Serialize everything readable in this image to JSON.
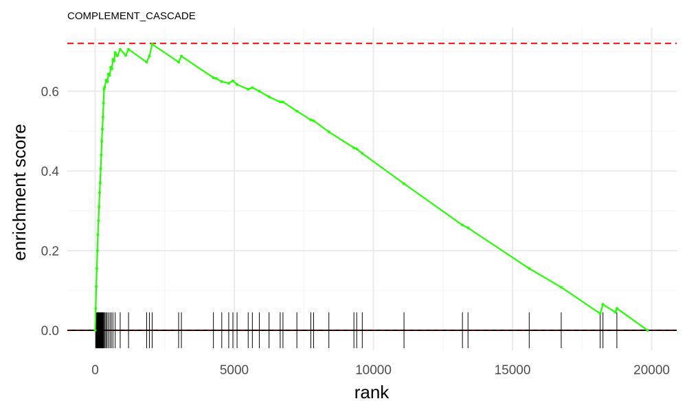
{
  "chart_data": {
    "type": "line",
    "title": "COMPLEMENT_CASCADE",
    "xlabel": "rank",
    "ylabel": "enrichment score",
    "xlim": [
      -1000,
      20900
    ],
    "ylim": [
      -0.05,
      0.76
    ],
    "x_ticks": [
      0,
      5000,
      10000,
      15000,
      20000
    ],
    "x_tick_labels": [
      "0",
      "5000",
      "10000",
      "15000",
      "20000"
    ],
    "y_ticks": [
      0.0,
      0.2,
      0.4,
      0.6
    ],
    "y_tick_labels": [
      "0.0",
      "0.2",
      "0.4",
      "0.6"
    ],
    "grid": true,
    "legend": "none",
    "max_es": 0.72,
    "colors": {
      "curve": "#22ff00",
      "max_line": "#ff0000",
      "zero_line": "#000000",
      "ticks": "#000000"
    },
    "hit_ranks": [
      20,
      35,
      50,
      65,
      80,
      95,
      110,
      125,
      140,
      155,
      170,
      185,
      200,
      215,
      230,
      245,
      260,
      275,
      290,
      310,
      340,
      380,
      420,
      470,
      530,
      580,
      640,
      720,
      900,
      1200,
      1850,
      1950,
      2050,
      3000,
      3100,
      4250,
      4550,
      4800,
      4950,
      5100,
      5500,
      5650,
      5900,
      6250,
      6650,
      6750,
      7250,
      7750,
      7850,
      8400,
      9300,
      9400,
      9600,
      11100,
      13200,
      13400,
      15600,
      16750,
      18150,
      18250,
      18750
    ],
    "curve": [
      [
        0,
        0.0
      ],
      [
        20,
        0.055
      ],
      [
        40,
        0.11
      ],
      [
        60,
        0.155
      ],
      [
        80,
        0.2
      ],
      [
        100,
        0.24
      ],
      [
        120,
        0.275
      ],
      [
        140,
        0.31
      ],
      [
        160,
        0.345
      ],
      [
        180,
        0.37
      ],
      [
        200,
        0.405
      ],
      [
        220,
        0.44
      ],
      [
        240,
        0.475
      ],
      [
        260,
        0.505
      ],
      [
        280,
        0.535
      ],
      [
        300,
        0.57
      ],
      [
        320,
        0.605
      ],
      [
        340,
        0.61
      ],
      [
        400,
        0.628
      ],
      [
        440,
        0.624
      ],
      [
        480,
        0.643
      ],
      [
        520,
        0.64
      ],
      [
        560,
        0.66
      ],
      [
        600,
        0.656
      ],
      [
        640,
        0.68
      ],
      [
        680,
        0.676
      ],
      [
        720,
        0.697
      ],
      [
        800,
        0.689
      ],
      [
        900,
        0.705
      ],
      [
        1100,
        0.69
      ],
      [
        1200,
        0.705
      ],
      [
        1850,
        0.673
      ],
      [
        1950,
        0.688
      ],
      [
        2050,
        0.718
      ],
      [
        3000,
        0.673
      ],
      [
        3100,
        0.688
      ],
      [
        4250,
        0.634
      ],
      [
        4350,
        0.632
      ],
      [
        4550,
        0.624
      ],
      [
        4800,
        0.62
      ],
      [
        4950,
        0.626
      ],
      [
        5100,
        0.617
      ],
      [
        5500,
        0.605
      ],
      [
        5650,
        0.609
      ],
      [
        5900,
        0.6
      ],
      [
        6250,
        0.586
      ],
      [
        6650,
        0.573
      ],
      [
        6750,
        0.573
      ],
      [
        7250,
        0.55
      ],
      [
        7750,
        0.528
      ],
      [
        7850,
        0.526
      ],
      [
        8400,
        0.498
      ],
      [
        9300,
        0.458
      ],
      [
        9400,
        0.455
      ],
      [
        9600,
        0.444
      ],
      [
        11100,
        0.368
      ],
      [
        13200,
        0.264
      ],
      [
        13400,
        0.257
      ],
      [
        15600,
        0.155
      ],
      [
        16750,
        0.108
      ],
      [
        18150,
        0.042
      ],
      [
        18250,
        0.065
      ],
      [
        18700,
        0.045
      ],
      [
        18750,
        0.055
      ],
      [
        19850,
        0.0
      ]
    ]
  }
}
